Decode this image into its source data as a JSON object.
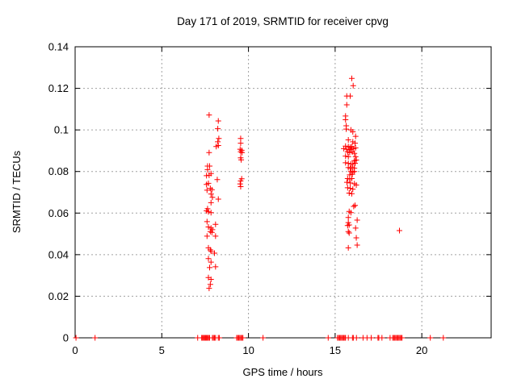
{
  "colors": {
    "marker": "#ff0000",
    "axis": "#000000",
    "grid": "#a0a0a0",
    "background": "#ffffff",
    "text": "#000000"
  },
  "chart_data": {
    "type": "scatter",
    "title": "Day 171 of 2019, SRMTID for receiver cpvg",
    "xlabel": "GPS time / hours",
    "ylabel": "SRMTID / TECUs",
    "xlim": [
      0,
      24
    ],
    "ylim": [
      0,
      0.14
    ],
    "xticks": [
      0,
      5,
      10,
      15,
      20
    ],
    "yticks": [
      0,
      0.02,
      0.04,
      0.06,
      0.08,
      0.1,
      0.12,
      0.14
    ],
    "grid": true,
    "legend_position": "none",
    "marker": "plus",
    "marker_size": 7,
    "series": [
      {
        "name": "SRMTID",
        "color": "#ff0000",
        "points": [
          [
            7.73,
            0.1072
          ],
          [
            8.26,
            0.1043
          ],
          [
            8.23,
            0.1006
          ],
          [
            8.29,
            0.0959
          ],
          [
            8.23,
            0.0943
          ],
          [
            8.26,
            0.0925
          ],
          [
            8.14,
            0.092
          ],
          [
            7.73,
            0.0891
          ],
          [
            7.64,
            0.0826
          ],
          [
            7.76,
            0.0826
          ],
          [
            7.64,
            0.0809
          ],
          [
            7.84,
            0.079
          ],
          [
            7.58,
            0.078
          ],
          [
            7.73,
            0.0782
          ],
          [
            8.2,
            0.0761
          ],
          [
            7.69,
            0.0743
          ],
          [
            7.58,
            0.0738
          ],
          [
            7.8,
            0.0719
          ],
          [
            7.89,
            0.0712
          ],
          [
            7.61,
            0.071
          ],
          [
            7.84,
            0.0692
          ],
          [
            7.92,
            0.0676
          ],
          [
            8.26,
            0.0667
          ],
          [
            7.84,
            0.065
          ],
          [
            7.64,
            0.0621
          ],
          [
            7.58,
            0.0611
          ],
          [
            7.69,
            0.0606
          ],
          [
            7.84,
            0.0602
          ],
          [
            7.61,
            0.0559
          ],
          [
            8.1,
            0.0546
          ],
          [
            7.69,
            0.0533
          ],
          [
            7.84,
            0.0528
          ],
          [
            7.92,
            0.052
          ],
          [
            7.8,
            0.0511
          ],
          [
            7.89,
            0.0507
          ],
          [
            7.61,
            0.0489
          ],
          [
            8.1,
            0.0489
          ],
          [
            7.69,
            0.0433
          ],
          [
            7.8,
            0.0423
          ],
          [
            7.84,
            0.0416
          ],
          [
            8.04,
            0.0407
          ],
          [
            7.69,
            0.0381
          ],
          [
            7.84,
            0.0364
          ],
          [
            8.1,
            0.0342
          ],
          [
            7.76,
            0.0338
          ],
          [
            7.69,
            0.029
          ],
          [
            7.84,
            0.0281
          ],
          [
            7.8,
            0.0257
          ],
          [
            7.73,
            0.0238
          ],
          [
            9.55,
            0.0959
          ],
          [
            9.55,
            0.0936
          ],
          [
            9.52,
            0.0907
          ],
          [
            9.61,
            0.0902
          ],
          [
            9.55,
            0.0895
          ],
          [
            9.63,
            0.0891
          ],
          [
            9.55,
            0.0866
          ],
          [
            9.58,
            0.0856
          ],
          [
            9.61,
            0.0765
          ],
          [
            9.55,
            0.0755
          ],
          [
            9.52,
            0.074
          ],
          [
            9.55,
            0.0727
          ],
          [
            15.96,
            0.1248
          ],
          [
            16.04,
            0.1213
          ],
          [
            15.67,
            0.1163
          ],
          [
            15.87,
            0.1163
          ],
          [
            15.67,
            0.1121
          ],
          [
            15.6,
            0.1067
          ],
          [
            15.6,
            0.1049
          ],
          [
            15.64,
            0.102
          ],
          [
            15.64,
            0.1004
          ],
          [
            15.91,
            0.1
          ],
          [
            16.02,
            0.0991
          ],
          [
            16.18,
            0.0969
          ],
          [
            15.76,
            0.0952
          ],
          [
            16.02,
            0.0943
          ],
          [
            16.15,
            0.0936
          ],
          [
            15.6,
            0.0922
          ],
          [
            15.76,
            0.092
          ],
          [
            15.87,
            0.0917
          ],
          [
            15.96,
            0.092
          ],
          [
            15.5,
            0.091
          ],
          [
            15.65,
            0.0907
          ],
          [
            15.81,
            0.0904
          ],
          [
            15.91,
            0.0907
          ],
          [
            16.07,
            0.091
          ],
          [
            16.18,
            0.0914
          ],
          [
            15.72,
            0.0894
          ],
          [
            15.84,
            0.0891
          ],
          [
            15.99,
            0.0894
          ],
          [
            16.11,
            0.0887
          ],
          [
            15.6,
            0.0874
          ],
          [
            15.76,
            0.0871
          ],
          [
            16.18,
            0.0871
          ],
          [
            16.22,
            0.0855
          ],
          [
            16.11,
            0.0852
          ],
          [
            15.6,
            0.0842
          ],
          [
            15.76,
            0.0839
          ],
          [
            15.91,
            0.0836
          ],
          [
            16.02,
            0.0836
          ],
          [
            16.15,
            0.0839
          ],
          [
            15.76,
            0.0819
          ],
          [
            15.87,
            0.0816
          ],
          [
            15.99,
            0.0819
          ],
          [
            16.11,
            0.0816
          ],
          [
            15.91,
            0.08
          ],
          [
            16.02,
            0.0797
          ],
          [
            16.11,
            0.08
          ],
          [
            15.84,
            0.0784
          ],
          [
            15.99,
            0.0787
          ],
          [
            15.72,
            0.0766
          ],
          [
            15.84,
            0.0764
          ],
          [
            15.96,
            0.0766
          ],
          [
            15.68,
            0.0748
          ],
          [
            15.87,
            0.0745
          ],
          [
            16.11,
            0.0741
          ],
          [
            16.22,
            0.0735
          ],
          [
            15.72,
            0.0722
          ],
          [
            15.87,
            0.0719
          ],
          [
            16.02,
            0.0715
          ],
          [
            15.81,
            0.0696
          ],
          [
            15.96,
            0.0693
          ],
          [
            16.07,
            0.0632
          ],
          [
            16.15,
            0.0637
          ],
          [
            15.81,
            0.0608
          ],
          [
            15.91,
            0.0602
          ],
          [
            15.76,
            0.0579
          ],
          [
            16.27,
            0.0566
          ],
          [
            15.76,
            0.0554
          ],
          [
            15.72,
            0.054
          ],
          [
            15.81,
            0.0543
          ],
          [
            16.18,
            0.0528
          ],
          [
            15.76,
            0.0511
          ],
          [
            15.81,
            0.0504
          ],
          [
            16.22,
            0.0481
          ],
          [
            16.27,
            0.0446
          ],
          [
            15.76,
            0.0433
          ],
          [
            18.71,
            0.0516
          ],
          [
            0.05,
            0
          ],
          [
            1.15,
            0
          ],
          [
            7.07,
            0
          ],
          [
            7.3,
            0
          ],
          [
            7.35,
            0
          ],
          [
            7.4,
            0
          ],
          [
            7.45,
            0
          ],
          [
            7.5,
            0
          ],
          [
            7.55,
            0
          ],
          [
            7.6,
            0
          ],
          [
            7.65,
            0
          ],
          [
            7.7,
            0
          ],
          [
            7.76,
            0
          ],
          [
            7.92,
            0
          ],
          [
            7.98,
            0
          ],
          [
            8.04,
            0
          ],
          [
            8.1,
            0
          ],
          [
            8.26,
            0
          ],
          [
            8.32,
            0
          ],
          [
            9.32,
            0
          ],
          [
            9.38,
            0
          ],
          [
            9.44,
            0
          ],
          [
            9.5,
            0
          ],
          [
            9.56,
            0
          ],
          [
            9.62,
            0
          ],
          [
            9.68,
            0
          ],
          [
            10.84,
            0
          ],
          [
            14.6,
            0
          ],
          [
            15.14,
            0
          ],
          [
            15.2,
            0
          ],
          [
            15.26,
            0
          ],
          [
            15.32,
            0
          ],
          [
            15.38,
            0
          ],
          [
            15.44,
            0
          ],
          [
            15.5,
            0
          ],
          [
            15.56,
            0
          ],
          [
            15.6,
            0
          ],
          [
            15.76,
            0
          ],
          [
            16.0,
            0
          ],
          [
            16.05,
            0
          ],
          [
            16.23,
            0
          ],
          [
            16.61,
            0
          ],
          [
            16.84,
            0
          ],
          [
            17.08,
            0
          ],
          [
            17.47,
            0
          ],
          [
            17.52,
            0
          ],
          [
            17.7,
            0
          ],
          [
            18.17,
            0
          ],
          [
            18.32,
            0
          ],
          [
            18.38,
            0
          ],
          [
            18.44,
            0
          ],
          [
            18.5,
            0
          ],
          [
            18.56,
            0
          ],
          [
            18.62,
            0
          ],
          [
            18.68,
            0
          ],
          [
            18.74,
            0
          ],
          [
            18.8,
            0
          ],
          [
            18.86,
            0
          ],
          [
            20.49,
            0
          ],
          [
            21.24,
            0
          ]
        ]
      }
    ]
  }
}
